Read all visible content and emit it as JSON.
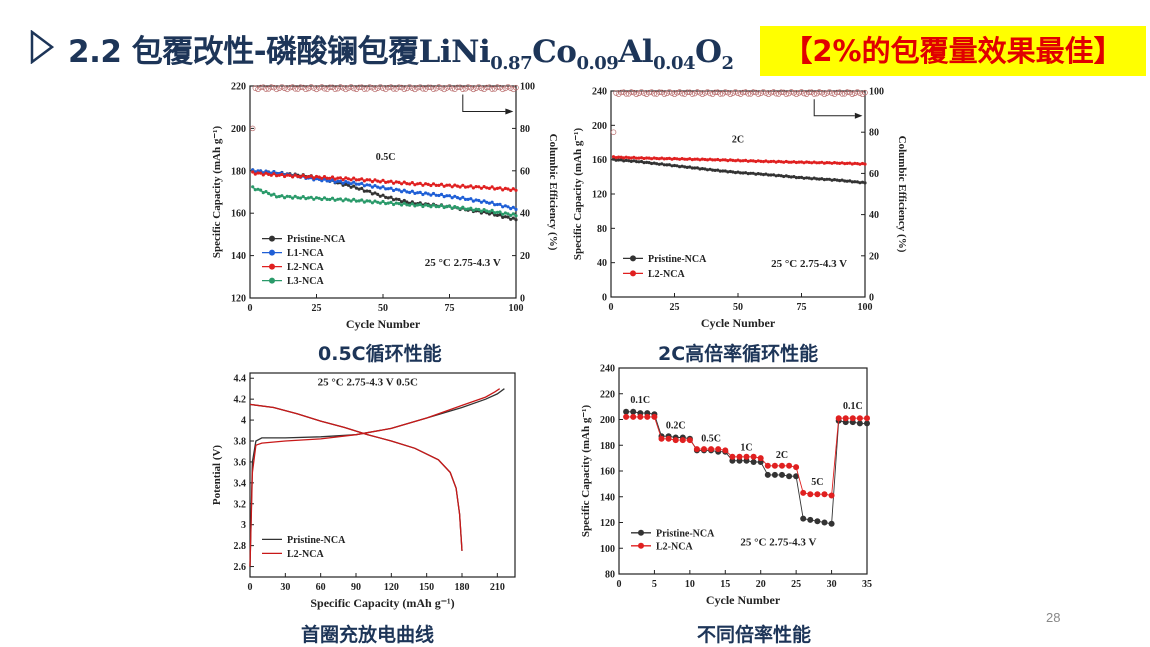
{
  "header": {
    "title_prefix": "2.2 包覆改性-磷酸镧包覆",
    "formula": {
      "li_ni": "LiNi",
      "ni_sub": "0.87",
      "co": "Co",
      "co_sub": "0.09",
      "al": "Al",
      "al_sub": "0.04",
      "o": "O",
      "o_sub": "2"
    },
    "highlight": "【2%的包覆量效果最佳】",
    "title_color": "#1d3558",
    "highlight_bg": "#ffff00",
    "highlight_color": "#e00000"
  },
  "captions": {
    "c1": "0.5C循环性能",
    "c2": "2C高倍率循环性能",
    "c3": "首圈充放电曲线",
    "c4": "不同倍率性能"
  },
  "page_number": "28",
  "chart_data": [
    {
      "type": "line",
      "id": "c1",
      "xlabel": "Cycle Number",
      "ylabel": "Specific Capacity (mAh g⁻¹)",
      "y2label": "Columbic Efficiency (%)",
      "xlim": [
        0,
        100
      ],
      "ylim": [
        120,
        220
      ],
      "y2lim": [
        0,
        100
      ],
      "xticks": [
        0,
        25,
        50,
        75,
        100
      ],
      "yticks": [
        120,
        140,
        160,
        180,
        200,
        220
      ],
      "y2ticks": [
        0,
        20,
        40,
        60,
        80,
        100
      ],
      "rate_label": "0.5C",
      "condition": "25 °C  2.75-4.3 V",
      "legend_position": "bottom-left",
      "series": [
        {
          "name": "Pristine-NCA",
          "color": "#333333",
          "x": [
            1,
            10,
            25,
            40,
            50,
            60,
            75,
            90,
            100
          ],
          "y": [
            180,
            179,
            177,
            172,
            168,
            165,
            163,
            160,
            157
          ]
        },
        {
          "name": "L1-NCA",
          "color": "#1f5fd6",
          "x": [
            1,
            10,
            25,
            40,
            50,
            60,
            75,
            90,
            100
          ],
          "y": [
            180,
            179,
            176,
            174,
            172,
            170,
            168,
            165,
            162
          ]
        },
        {
          "name": "L2-NCA",
          "color": "#e02020",
          "x": [
            1,
            10,
            25,
            40,
            50,
            60,
            75,
            90,
            100
          ],
          "y": [
            179,
            178,
            177,
            176,
            175,
            174,
            173,
            172,
            171
          ]
        },
        {
          "name": "L3-NCA",
          "color": "#2a9a6a",
          "x": [
            1,
            10,
            25,
            40,
            50,
            60,
            75,
            90,
            100
          ],
          "y": [
            172,
            168,
            167,
            166,
            165,
            164,
            163,
            161,
            159
          ]
        }
      ],
      "efficiency": {
        "x": [
          1,
          2,
          100
        ],
        "y": [
          80,
          99,
          99
        ]
      }
    },
    {
      "type": "line",
      "id": "c2",
      "xlabel": "Cycle Number",
      "ylabel": "Specific Capacity (mAh g⁻¹)",
      "y2label": "Columbic Efficiency (%)",
      "xlim": [
        0,
        100
      ],
      "ylim": [
        0,
        240
      ],
      "y2lim": [
        0,
        100
      ],
      "xticks": [
        0,
        25,
        50,
        75,
        100
      ],
      "yticks": [
        0,
        40,
        80,
        120,
        160,
        200,
        240
      ],
      "y2ticks": [
        0,
        20,
        40,
        60,
        80,
        100
      ],
      "rate_label": "2C",
      "condition": "25 °C  2.75-4.3 V",
      "legend_position": "bottom-left",
      "series": [
        {
          "name": "Pristine-NCA",
          "color": "#333333",
          "x": [
            1,
            10,
            25,
            40,
            50,
            60,
            75,
            90,
            100
          ],
          "y": [
            160,
            158,
            153,
            148,
            145,
            143,
            139,
            136,
            133
          ]
        },
        {
          "name": "L2-NCA",
          "color": "#e02020",
          "x": [
            1,
            10,
            25,
            40,
            50,
            60,
            75,
            90,
            100
          ],
          "y": [
            163,
            162,
            161,
            160,
            159,
            158,
            157,
            156,
            155
          ]
        }
      ],
      "efficiency": {
        "x": [
          1,
          2,
          100
        ],
        "y": [
          80,
          99,
          99
        ]
      }
    },
    {
      "type": "line",
      "id": "c3",
      "xlabel": "Specific Capacity (mAh g⁻¹)",
      "ylabel": "Potential (V)",
      "xlim": [
        0,
        225
      ],
      "ylim": [
        2.5,
        4.45
      ],
      "xticks": [
        0,
        30,
        60,
        90,
        120,
        150,
        180,
        210
      ],
      "yticks": [
        2.6,
        2.8,
        3.0,
        3.2,
        3.4,
        3.6,
        3.8,
        4.0,
        4.2,
        4.4
      ],
      "condition": "25 °C  2.75-4.3 V  0.5C",
      "legend_position": "bottom-left",
      "series": [
        {
          "name": "Pristine-NCA",
          "color": "#333333",
          "charge": {
            "x": [
              0,
              2,
              5,
              10,
              30,
              60,
              90,
              120,
              150,
              180,
              200,
              210,
              216
            ],
            "y": [
              2.6,
              3.6,
              3.8,
              3.83,
              3.83,
              3.84,
              3.86,
              3.92,
              4.02,
              4.12,
              4.2,
              4.25,
              4.3
            ]
          },
          "discharge": {
            "x": [
              0,
              20,
              40,
              60,
              80,
              100,
              120,
              140,
              160,
              170,
              175,
              178,
              180
            ],
            "y": [
              4.15,
              4.12,
              4.06,
              3.99,
              3.93,
              3.86,
              3.8,
              3.73,
              3.62,
              3.5,
              3.35,
              3.1,
              2.75
            ]
          }
        },
        {
          "name": "L2-NCA",
          "color": "#c81818",
          "charge": {
            "x": [
              0,
              2,
              5,
              10,
              30,
              60,
              90,
              120,
              150,
              180,
              200,
              208,
              212
            ],
            "y": [
              2.6,
              3.5,
              3.76,
              3.78,
              3.8,
              3.82,
              3.86,
              3.92,
              4.02,
              4.14,
              4.22,
              4.27,
              4.3
            ]
          },
          "discharge": {
            "x": [
              0,
              20,
              40,
              60,
              80,
              100,
              120,
              140,
              160,
              170,
              175,
              178,
              180
            ],
            "y": [
              4.15,
              4.12,
              4.06,
              3.99,
              3.93,
              3.86,
              3.8,
              3.73,
              3.62,
              3.5,
              3.35,
              3.1,
              2.75
            ]
          }
        }
      ]
    },
    {
      "type": "scatter",
      "id": "c4",
      "xlabel": "Cycle Number",
      "ylabel": "Specific Capacity (mAh g⁻¹)",
      "xlim": [
        0,
        35
      ],
      "ylim": [
        80,
        240
      ],
      "xticks": [
        0,
        5,
        10,
        15,
        20,
        25,
        30,
        35
      ],
      "yticks": [
        80,
        100,
        120,
        140,
        160,
        180,
        200,
        220,
        240
      ],
      "condition": "25 °C  2.75-4.3 V",
      "legend_position": "bottom-left",
      "rate_labels": [
        {
          "text": "0.1C",
          "x": 3,
          "y": 213
        },
        {
          "text": "0.2C",
          "x": 8,
          "y": 193
        },
        {
          "text": "0.5C",
          "x": 13,
          "y": 183
        },
        {
          "text": "1C",
          "x": 18,
          "y": 176
        },
        {
          "text": "2C",
          "x": 23,
          "y": 170
        },
        {
          "text": "5C",
          "x": 28,
          "y": 149
        },
        {
          "text": "0.1C",
          "x": 33,
          "y": 208
        }
      ],
      "series": [
        {
          "name": "Pristine-NCA",
          "color": "#333333",
          "x": [
            1,
            2,
            3,
            4,
            5,
            6,
            7,
            8,
            9,
            10,
            11,
            12,
            13,
            14,
            15,
            16,
            17,
            18,
            19,
            20,
            21,
            22,
            23,
            24,
            25,
            26,
            27,
            28,
            29,
            30,
            31,
            32,
            33,
            34,
            35
          ],
          "y": [
            206,
            206,
            205,
            205,
            204,
            187,
            187,
            186,
            186,
            185,
            176,
            176,
            176,
            175,
            175,
            168,
            168,
            168,
            167,
            167,
            157,
            157,
            157,
            156,
            156,
            123,
            122,
            121,
            120,
            119,
            199,
            198,
            198,
            197,
            197
          ]
        },
        {
          "name": "L2-NCA",
          "color": "#e02020",
          "x": [
            1,
            2,
            3,
            4,
            5,
            6,
            7,
            8,
            9,
            10,
            11,
            12,
            13,
            14,
            15,
            16,
            17,
            18,
            19,
            20,
            21,
            22,
            23,
            24,
            25,
            26,
            27,
            28,
            29,
            30,
            31,
            32,
            33,
            34,
            35
          ],
          "y": [
            202,
            202,
            202,
            202,
            202,
            185,
            185,
            184,
            184,
            184,
            177,
            177,
            177,
            177,
            176,
            171,
            171,
            171,
            171,
            170,
            164,
            164,
            164,
            164,
            163,
            143,
            142,
            142,
            142,
            141,
            201,
            201,
            201,
            201,
            201
          ]
        }
      ]
    }
  ]
}
